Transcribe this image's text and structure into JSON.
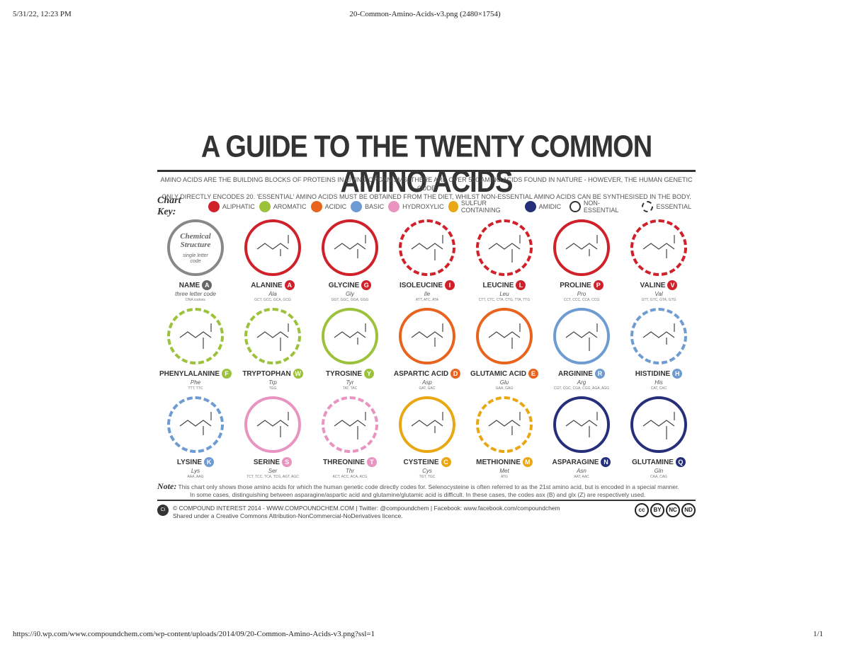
{
  "print_header": {
    "datetime": "5/31/22, 12:23 PM",
    "doc_title": "20-Common-Amino-Acids-v3.png (2480×1754)"
  },
  "print_footer": {
    "url": "https://i0.wp.com/www.compoundchem.com/wp-content/uploads/2014/09/20-Common-Amino-Acids-v3.png?ssl=1",
    "page": "1/1"
  },
  "poster": {
    "title": "A GUIDE TO THE TWENTY COMMON AMINO ACIDS",
    "intro_line1": "AMINO ACIDS ARE THE BUILDING BLOCKS OF PROTEINS IN LIVING ORGANISMS. THERE ARE OVER 500 AMINO ACIDS FOUND IN NATURE - HOWEVER, THE HUMAN GENETIC CODE",
    "intro_line2": "ONLY DIRECTLY ENCODES 20. 'ESSENTIAL' AMINO ACIDS MUST BE OBTAINED FROM THE DIET, WHILST NON-ESSENTIAL AMINO ACIDS CAN BE SYNTHESISED IN THE BODY.",
    "key_title": "Chart Key:",
    "key": [
      {
        "label": "ALIPHATIC",
        "color": "#d0202a"
      },
      {
        "label": "AROMATIC",
        "color": "#9cc23c"
      },
      {
        "label": "ACIDIC",
        "color": "#e8641e"
      },
      {
        "label": "BASIC",
        "color": "#6e9bd2"
      },
      {
        "label": "HYDROXYLIC",
        "color": "#e893c0"
      },
      {
        "label": "SULFUR CONTAINING",
        "color": "#eaa714"
      },
      {
        "label": "AMIDIC",
        "color": "#262f7a"
      }
    ],
    "key_non_essential": "NON-ESSENTIAL",
    "key_essential": "ESSENTIAL",
    "legend": {
      "title1": "Chemical",
      "title2": "Structure",
      "small1": "single letter",
      "small2": "code",
      "name": "NAME",
      "letter": "A",
      "three": "three letter code",
      "codons": "DNA codons"
    },
    "acids": [
      {
        "name": "ALANINE",
        "letter": "A",
        "three": "Ala",
        "codons": "GCT, GCC, GCA, GCG",
        "color": "#d0202a",
        "essential": false
      },
      {
        "name": "GLYCINE",
        "letter": "G",
        "three": "Gly",
        "codons": "GGT, GGC, GGA, GGG",
        "color": "#d0202a",
        "essential": false
      },
      {
        "name": "ISOLEUCINE",
        "letter": "I",
        "three": "Ile",
        "codons": "ATT, ATC, ATA",
        "color": "#d0202a",
        "essential": true
      },
      {
        "name": "LEUCINE",
        "letter": "L",
        "three": "Leu",
        "codons": "CTT, CTC, CTA, CTG, TTA, TTG",
        "color": "#d0202a",
        "essential": true
      },
      {
        "name": "PROLINE",
        "letter": "P",
        "three": "Pro",
        "codons": "CCT, CCC, CCA, CCG",
        "color": "#d0202a",
        "essential": false
      },
      {
        "name": "VALINE",
        "letter": "V",
        "three": "Val",
        "codons": "GTT, GTC, GTA, GTG",
        "color": "#d0202a",
        "essential": true
      },
      {
        "name": "PHENYLALANINE",
        "letter": "F",
        "three": "Phe",
        "codons": "TTT, TTC",
        "color": "#9cc23c",
        "essential": true
      },
      {
        "name": "TRYPTOPHAN",
        "letter": "W",
        "three": "Trp",
        "codons": "TGG",
        "color": "#9cc23c",
        "essential": true
      },
      {
        "name": "TYROSINE",
        "letter": "Y",
        "three": "Tyr",
        "codons": "TAT, TAC",
        "color": "#9cc23c",
        "essential": false
      },
      {
        "name": "ASPARTIC ACID",
        "letter": "D",
        "three": "Asp",
        "codons": "GAT, GAC",
        "color": "#e8641e",
        "essential": false
      },
      {
        "name": "GLUTAMIC ACID",
        "letter": "E",
        "three": "Glu",
        "codons": "GAA, GAG",
        "color": "#e8641e",
        "essential": false
      },
      {
        "name": "ARGININE",
        "letter": "R",
        "three": "Arg",
        "codons": "CGT, CGC, CGA, CGG, AGA, AGG",
        "color": "#6e9bd2",
        "essential": false
      },
      {
        "name": "HISTIDINE",
        "letter": "H",
        "three": "His",
        "codons": "CAT, CAC",
        "color": "#6e9bd2",
        "essential": true
      },
      {
        "name": "LYSINE",
        "letter": "K",
        "three": "Lys",
        "codons": "AAA, AAG",
        "color": "#6e9bd2",
        "essential": true
      },
      {
        "name": "SERINE",
        "letter": "S",
        "three": "Ser",
        "codons": "TCT, TCC, TCA, TCG, AGT, AGC",
        "color": "#e893c0",
        "essential": false
      },
      {
        "name": "THREONINE",
        "letter": "T",
        "three": "Thr",
        "codons": "ACT, ACC, ACA, ACG",
        "color": "#e893c0",
        "essential": true
      },
      {
        "name": "CYSTEINE",
        "letter": "C",
        "three": "Cys",
        "codons": "TGT, TGC",
        "color": "#eaa714",
        "essential": false
      },
      {
        "name": "METHIONINE",
        "letter": "M",
        "three": "Met",
        "codons": "ATG",
        "color": "#eaa714",
        "essential": true
      },
      {
        "name": "ASPARAGINE",
        "letter": "N",
        "three": "Asn",
        "codons": "AAT, AAC",
        "color": "#262f7a",
        "essential": false
      },
      {
        "name": "GLUTAMINE",
        "letter": "Q",
        "three": "Gln",
        "codons": "CAA, CAG",
        "color": "#262f7a",
        "essential": false
      }
    ],
    "note_label": "Note:",
    "note_line1": "This chart only shows those amino acids for which the human genetic code directly codes for. Selenocysteine is often referred to as the 21st amino acid, but is encoded in a special manner.",
    "note_line2": "In some cases, distinguishing between asparagine/aspartic acid and glutamine/glutamic acid is difficult. In these cases, the codes asx (B) and glx (Z) are respectively used.",
    "credit_line1": "© COMPOUND INTEREST 2014 - WWW.COMPOUNDCHEM.COM | Twitter: @compoundchem | Facebook: www.facebook.com/compoundchem",
    "credit_line2": "Shared under a Creative Commons Attribution-NonCommercial-NoDerivatives licence.",
    "ci_logo": "Ci",
    "cc_badges": [
      "cc",
      "BY",
      "NC",
      "ND"
    ]
  }
}
